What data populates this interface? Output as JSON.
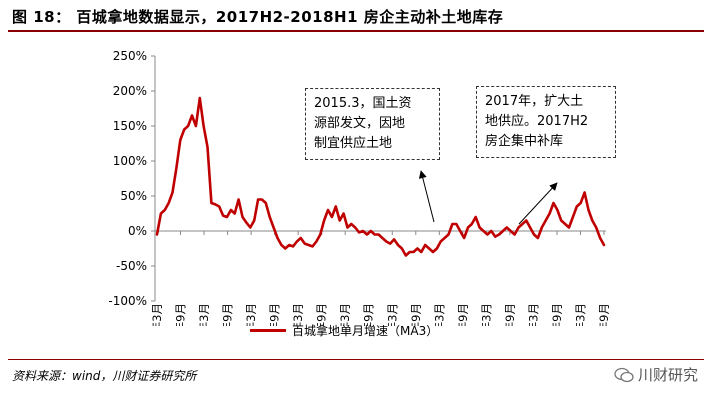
{
  "header": {
    "title": "图 18：  百城拿地数据显示，2017H2-2018H1 房企主动补土地库存"
  },
  "footer": {
    "source": "资料来源：wind，川财证券研究所",
    "watermark": "川财研究"
  },
  "annotations": [
    "2015.3，国土资\n源部发文，因地\n制宜供应土地",
    "2017年，扩大土\n地供应。2017H2\n房企集中补库"
  ],
  "colors": {
    "line": "#c00000",
    "title_rule": "#8b0000"
  },
  "chart_data": {
    "type": "line",
    "ylim": [
      -100,
      250
    ],
    "yticks": [
      -100,
      -50,
      0,
      50,
      100,
      150,
      200,
      250
    ],
    "ytick_labels": [
      "-100%",
      "-50%",
      "0%",
      "50%",
      "100%",
      "150%",
      "200%",
      "250%"
    ],
    "xtick_labels": [
      "2009年3月",
      "2009年9月",
      "2010年3月",
      "2010年9月",
      "2011年3月",
      "2011年9月",
      "2012年3月",
      "2012年9月",
      "2013年3月",
      "2013年9月",
      "2014年3月",
      "2014年9月",
      "2015年3月",
      "2015年9月",
      "2016年3月",
      "2016年9月",
      "2017年3月",
      "2017年9月",
      "2018年3月",
      "2018年9月"
    ],
    "grid": false,
    "legend_position": "bottom",
    "series": [
      {
        "name": "百城拿地单月增速（MA3）",
        "values": [
          -5,
          25,
          30,
          40,
          55,
          90,
          130,
          145,
          150,
          165,
          150,
          190,
          150,
          120,
          40,
          38,
          35,
          22,
          20,
          30,
          25,
          45,
          20,
          12,
          5,
          15,
          45,
          45,
          40,
          20,
          5,
          -10,
          -20,
          -25,
          -20,
          -22,
          -15,
          -10,
          -18,
          -20,
          -22,
          -15,
          -5,
          15,
          30,
          20,
          35,
          15,
          25,
          5,
          10,
          5,
          -2,
          0,
          -5,
          0,
          -5,
          -5,
          -10,
          -15,
          -18,
          -12,
          -20,
          -25,
          -35,
          -30,
          -30,
          -25,
          -30,
          -20,
          -25,
          -30,
          -25,
          -15,
          -10,
          -5,
          10,
          10,
          0,
          -10,
          5,
          10,
          20,
          5,
          0,
          -5,
          0,
          -8,
          -5,
          0,
          5,
          0,
          -5,
          5,
          10,
          15,
          5,
          -5,
          -10,
          5,
          15,
          25,
          40,
          30,
          15,
          10,
          5,
          20,
          35,
          40,
          55,
          30,
          15,
          5,
          -10,
          -20
        ]
      }
    ]
  }
}
